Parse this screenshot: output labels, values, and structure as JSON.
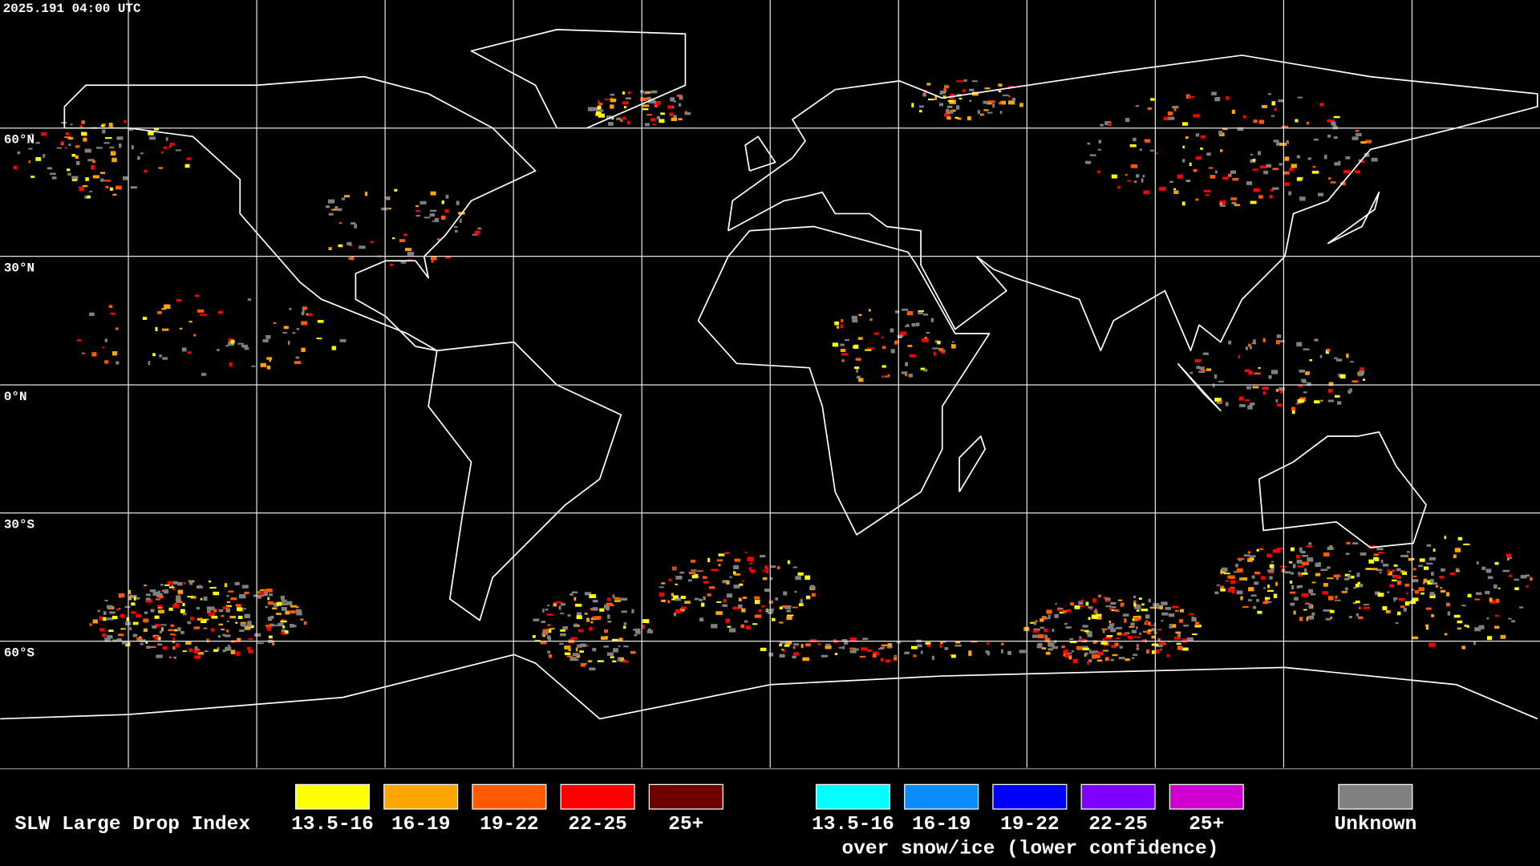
{
  "timestamp": "2025.191 04:00 UTC",
  "latitude_labels": [
    "60°N",
    "30°N",
    "0°N",
    "30°S",
    "60°S"
  ],
  "legend": {
    "title": "SLW Large Drop Index",
    "groups": [
      {
        "items": [
          {
            "label": "13.5-16",
            "color": "#ffff00"
          },
          {
            "label": "16-19",
            "color": "#ffa500"
          },
          {
            "label": "19-22",
            "color": "#ff5a00"
          },
          {
            "label": "22-25",
            "color": "#ff0000"
          },
          {
            "label": "25+",
            "color": "#6e0000"
          }
        ]
      },
      {
        "items": [
          {
            "label": "13.5-16",
            "color": "#00ffff"
          },
          {
            "label": "16-19",
            "color": "#0a8cff"
          },
          {
            "label": "19-22",
            "color": "#0000ff"
          },
          {
            "label": "22-25",
            "color": "#8000ff"
          },
          {
            "label": "25+",
            "color": "#d000d0"
          }
        ],
        "caption": "over snow/ice (lower confidence)"
      }
    ],
    "unknown": {
      "label": "Unknown",
      "color": "#808080"
    }
  }
}
